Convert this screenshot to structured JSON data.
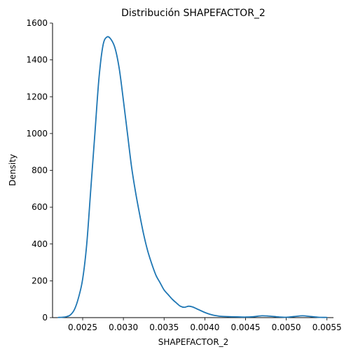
{
  "chart_data": {
    "type": "line",
    "title": "Distribución SHAPEFACTOR_2",
    "xlabel": "SHAPEFACTOR_2",
    "ylabel": "Density",
    "xlim": [
      0.00213,
      0.00558
    ],
    "ylim": [
      0,
      1600
    ],
    "xticks": [
      0.0025,
      0.003,
      0.0035,
      0.004,
      0.0045,
      0.005,
      0.0055
    ],
    "xtick_labels": [
      "0.0025",
      "0.0030",
      "0.0035",
      "0.0040",
      "0.0045",
      "0.0050",
      "0.0055"
    ],
    "yticks": [
      0,
      200,
      400,
      600,
      800,
      1000,
      1200,
      1400,
      1600
    ],
    "ytick_labels": [
      "0",
      "200",
      "400",
      "600",
      "800",
      "1000",
      "1200",
      "1400",
      "1600"
    ],
    "grid": false,
    "line_color": "#1f77b4",
    "series": [
      {
        "x": [
          0.0022,
          0.00225,
          0.0023,
          0.00235,
          0.0024,
          0.00245,
          0.0025,
          0.00255,
          0.0026,
          0.00265,
          0.0027,
          0.00275,
          0.0028,
          0.00285,
          0.0029,
          0.00295,
          0.003,
          0.00305,
          0.0031,
          0.00315,
          0.0032,
          0.00325,
          0.0033,
          0.00335,
          0.0034,
          0.00345,
          0.0035,
          0.00355,
          0.0036,
          0.00365,
          0.0037,
          0.00375,
          0.0038,
          0.00385,
          0.0039,
          0.00395,
          0.004,
          0.00405,
          0.0041,
          0.00415,
          0.0042,
          0.0043,
          0.0044,
          0.0045,
          0.0046,
          0.0047,
          0.0048,
          0.0049,
          0.005,
          0.0051,
          0.0052,
          0.0053,
          0.0054,
          0.0055
        ],
        "y": [
          1,
          2,
          5,
          15,
          45,
          110,
          210,
          400,
          700,
          1000,
          1300,
          1480,
          1525,
          1510,
          1460,
          1350,
          1180,
          1000,
          820,
          680,
          560,
          450,
          360,
          290,
          230,
          190,
          150,
          125,
          100,
          80,
          62,
          56,
          62,
          58,
          48,
          38,
          28,
          20,
          14,
          10,
          7,
          5,
          4,
          3,
          5,
          10,
          8,
          4,
          2,
          6,
          10,
          6,
          2,
          1
        ]
      }
    ]
  }
}
